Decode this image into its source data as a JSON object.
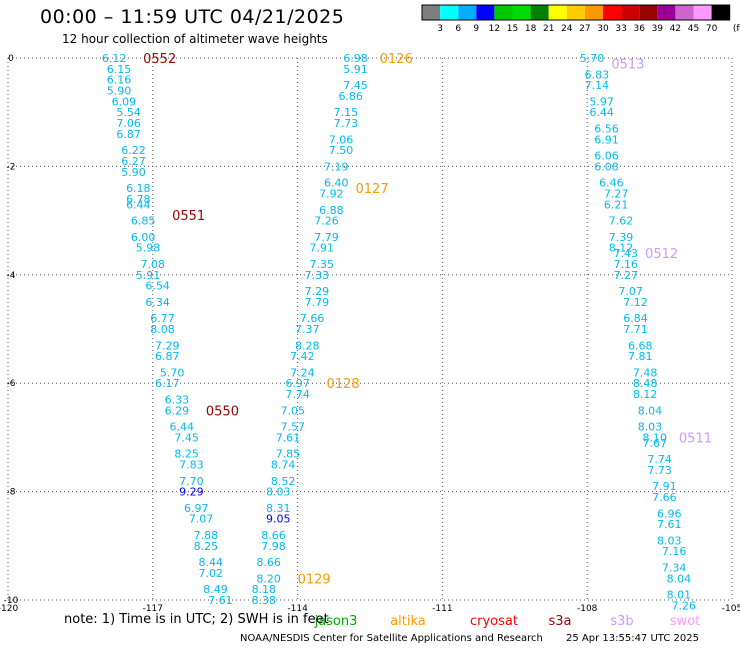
{
  "header": {
    "title": "00:00 – 11:59 UTC 04/21/2025",
    "subtitle": "12 hour collection of altimeter wave heights"
  },
  "colorbar": {
    "ticks": [
      "3",
      "6",
      "9",
      "12",
      "15",
      "18",
      "21",
      "24",
      "27",
      "30",
      "33",
      "36",
      "39",
      "42",
      "45",
      "70"
    ],
    "unit": "(ft)",
    "colors": [
      "#7f7f7f",
      "#00ffff",
      "#00b0ff",
      "#0000ff",
      "#00c800",
      "#00dc00",
      "#008000",
      "#ffff00",
      "#ffcc00",
      "#ff9900",
      "#ff0000",
      "#cc0000",
      "#990000",
      "#990099",
      "#cc66cc",
      "#ff99ff",
      "#000000"
    ]
  },
  "footer": {
    "note": "note: 1) Time is in UTC; 2) SWH is in feet",
    "credit": "NOAA/NESDIS Center for Satellite Applications and Research",
    "timestamp": "25 Apr 13:55:47 UTC 2025"
  },
  "chart_data": {
    "type": "scatter",
    "xlim": [
      -120,
      -105
    ],
    "ylim": [
      -10,
      0
    ],
    "x_ticks": [
      -120,
      -117,
      -114,
      -111,
      -108,
      -105
    ],
    "y_ticks": [
      0,
      -2,
      -4,
      -6,
      -8,
      -10
    ],
    "grid": true,
    "legend_position": "bottom",
    "legend": [
      {
        "name": "jason3",
        "color": "#00aa00"
      },
      {
        "name": "altika",
        "color": "#ff9900"
      },
      {
        "name": "cryosat",
        "color": "#ff0000"
      },
      {
        "name": "s3a",
        "color": "#990000"
      },
      {
        "name": "s3b",
        "color": "#cc99ff"
      },
      {
        "name": "swot",
        "color": "#ff99ff"
      }
    ],
    "time_labels": [
      {
        "text": "0552",
        "lon": -117.2,
        "lat": 0.0,
        "color": "#990000"
      },
      {
        "text": "0551",
        "lon": -116.6,
        "lat": -2.9,
        "color": "#990000"
      },
      {
        "text": "0550",
        "lon": -115.9,
        "lat": -6.5,
        "color": "#990000"
      },
      {
        "text": "0126",
        "lon": -112.3,
        "lat": 0.0,
        "color": "#ff9900"
      },
      {
        "text": "0127",
        "lon": -112.8,
        "lat": -2.4,
        "color": "#ff9900"
      },
      {
        "text": "0128",
        "lon": -113.4,
        "lat": -6.0,
        "color": "#ff9900"
      },
      {
        "text": "0129",
        "lon": -114.0,
        "lat": -9.6,
        "color": "#ff9900"
      },
      {
        "text": "0513",
        "lon": -107.5,
        "lat": -0.1,
        "color": "#cc99ff"
      },
      {
        "text": "0512",
        "lon": -106.8,
        "lat": -3.6,
        "color": "#cc99ff"
      },
      {
        "text": "0511",
        "lon": -106.1,
        "lat": -7.0,
        "color": "#cc99ff"
      }
    ],
    "series": [
      {
        "color": "#00bbee",
        "points": [
          [
            -117.8,
            0.0,
            "6.12"
          ],
          [
            -117.7,
            -0.2,
            "6.15"
          ],
          [
            -117.7,
            -0.4,
            "6.16"
          ],
          [
            -117.7,
            -0.6,
            "5.90"
          ],
          [
            -117.6,
            -0.8,
            "6.09"
          ],
          [
            -117.5,
            -1.0,
            "5.54"
          ],
          [
            -117.5,
            -1.2,
            "7.06"
          ],
          [
            -117.5,
            -1.4,
            "6.87"
          ],
          [
            -117.4,
            -1.7,
            "6.22"
          ],
          [
            -117.4,
            -1.9,
            "6.27"
          ],
          [
            -117.4,
            -2.1,
            "5.90"
          ],
          [
            -117.3,
            -2.4,
            "6.18"
          ],
          [
            -117.3,
            -2.6,
            "6.78"
          ],
          [
            -117.3,
            -2.7,
            "6.44"
          ],
          [
            -117.2,
            -3.0,
            "6.85"
          ],
          [
            -117.2,
            -3.3,
            "6.00"
          ],
          [
            -117.1,
            -3.5,
            "5.98"
          ],
          [
            -117.0,
            -3.8,
            "7.08"
          ],
          [
            -117.1,
            -4.0,
            "5.91"
          ],
          [
            -116.9,
            -4.2,
            "6.54"
          ],
          [
            -116.9,
            -4.5,
            "6.34"
          ],
          [
            -116.8,
            -4.8,
            "6.77"
          ],
          [
            -116.8,
            -5.0,
            "8.08"
          ],
          [
            -116.7,
            -5.3,
            "7.29"
          ],
          [
            -116.7,
            -5.5,
            "6.87"
          ],
          [
            -116.6,
            -5.8,
            "5.70"
          ],
          [
            -116.7,
            -6.0,
            "6.17"
          ],
          [
            -116.5,
            -6.3,
            "6.33"
          ],
          [
            -116.5,
            -6.5,
            "6.29"
          ],
          [
            -116.4,
            -6.8,
            "6.44"
          ],
          [
            -116.3,
            -7.0,
            "7.45"
          ],
          [
            -116.3,
            -7.3,
            "8.25"
          ],
          [
            -116.2,
            -7.5,
            "7.83"
          ],
          [
            -116.2,
            -7.8,
            "7.70"
          ],
          [
            -116.2,
            -8.0,
            "9.29"
          ],
          [
            -116.1,
            -8.3,
            "6.97"
          ],
          [
            -116.0,
            -8.5,
            "7.07"
          ],
          [
            -115.9,
            -8.8,
            "7.88"
          ],
          [
            -115.9,
            -9.0,
            "8.25"
          ],
          [
            -115.8,
            -9.3,
            "8.44"
          ],
          [
            -115.8,
            -9.5,
            "7.02"
          ],
          [
            -115.7,
            -9.8,
            "8.49"
          ],
          [
            -115.6,
            -10.0,
            "7.61"
          ],
          [
            -112.8,
            0.0,
            "6.98"
          ],
          [
            -112.8,
            -0.2,
            "5.91"
          ],
          [
            -112.8,
            -0.5,
            "7.45"
          ],
          [
            -112.9,
            -0.7,
            "6.86"
          ],
          [
            -113.0,
            -1.0,
            "7.15"
          ],
          [
            -113.0,
            -1.2,
            "7.73"
          ],
          [
            -113.1,
            -1.5,
            "7.06"
          ],
          [
            -113.1,
            -1.7,
            "7.50"
          ],
          [
            -113.2,
            -2.0,
            "7.19"
          ],
          [
            -113.2,
            -2.3,
            "6.40"
          ],
          [
            -113.3,
            -2.5,
            "7.92"
          ],
          [
            -113.3,
            -2.8,
            "6.88"
          ],
          [
            -113.4,
            -3.0,
            "7.26"
          ],
          [
            -113.4,
            -3.3,
            "7.79"
          ],
          [
            -113.5,
            -3.5,
            "7.91"
          ],
          [
            -113.5,
            -3.8,
            "7.35"
          ],
          [
            -113.6,
            -4.0,
            "7.33"
          ],
          [
            -113.6,
            -4.3,
            "7.29"
          ],
          [
            -113.6,
            -4.5,
            "7.79"
          ],
          [
            -113.7,
            -4.8,
            "7.66"
          ],
          [
            -113.8,
            -5.0,
            "7.37"
          ],
          [
            -113.8,
            -5.3,
            "8.28"
          ],
          [
            -113.9,
            -5.5,
            "7.42"
          ],
          [
            -113.9,
            -5.8,
            "7.24"
          ],
          [
            -114.0,
            -6.0,
            "6.97"
          ],
          [
            -114.0,
            -6.2,
            "7.74"
          ],
          [
            -114.1,
            -6.5,
            "7.05"
          ],
          [
            -114.1,
            -6.8,
            "7.57"
          ],
          [
            -114.2,
            -7.0,
            "7.61"
          ],
          [
            -114.2,
            -7.3,
            "7.85"
          ],
          [
            -114.3,
            -7.5,
            "8.74"
          ],
          [
            -114.3,
            -7.8,
            "8.52"
          ],
          [
            -114.4,
            -8.0,
            "8.03"
          ],
          [
            -114.4,
            -8.3,
            "8.31"
          ],
          [
            -114.4,
            -8.5,
            "9.05"
          ],
          [
            -114.5,
            -8.8,
            "8.66"
          ],
          [
            -114.5,
            -9.0,
            "7.98"
          ],
          [
            -114.6,
            -9.3,
            "8.66"
          ],
          [
            -114.6,
            -9.6,
            "8.20"
          ],
          [
            -114.7,
            -9.8,
            "8.18"
          ],
          [
            -114.7,
            -10.0,
            "8.38"
          ],
          [
            -107.9,
            0.0,
            "5.70"
          ],
          [
            -107.8,
            -0.3,
            "6.83"
          ],
          [
            -107.8,
            -0.5,
            "7.14"
          ],
          [
            -107.7,
            -0.8,
            "5.97"
          ],
          [
            -107.7,
            -1.0,
            "6.44"
          ],
          [
            -107.6,
            -1.3,
            "6.56"
          ],
          [
            -107.6,
            -1.5,
            "6.91"
          ],
          [
            -107.6,
            -1.8,
            "6.06"
          ],
          [
            -107.6,
            -2.0,
            "6.08"
          ],
          [
            -107.5,
            -2.3,
            "6.46"
          ],
          [
            -107.4,
            -2.5,
            "7.27"
          ],
          [
            -107.4,
            -2.7,
            "6.21"
          ],
          [
            -107.3,
            -3.0,
            "7.62"
          ],
          [
            -107.3,
            -3.3,
            "7.39"
          ],
          [
            -107.3,
            -3.5,
            "8.12"
          ],
          [
            -107.2,
            -3.6,
            "7.43"
          ],
          [
            -107.2,
            -3.8,
            "7.16"
          ],
          [
            -107.2,
            -4.0,
            "7.27"
          ],
          [
            -107.1,
            -4.3,
            "7.07"
          ],
          [
            -107.0,
            -4.5,
            "7.12"
          ],
          [
            -107.0,
            -4.8,
            "6.84"
          ],
          [
            -107.0,
            -5.0,
            "7.71"
          ],
          [
            -106.9,
            -5.3,
            "6.68"
          ],
          [
            -106.9,
            -5.5,
            "7.81"
          ],
          [
            -106.8,
            -5.8,
            "7.48"
          ],
          [
            -106.8,
            -6.0,
            "8.48"
          ],
          [
            -106.8,
            -6.2,
            "8.12"
          ],
          [
            -106.7,
            -6.5,
            "8.04"
          ],
          [
            -106.7,
            -6.8,
            "8.03"
          ],
          [
            -106.6,
            -7.0,
            "8.10"
          ],
          [
            -106.6,
            -7.1,
            "7.67"
          ],
          [
            -106.5,
            -7.4,
            "7.74"
          ],
          [
            -106.5,
            -7.6,
            "7.73"
          ],
          [
            -106.4,
            -7.9,
            "7.91"
          ],
          [
            -106.4,
            -8.1,
            "7.66"
          ],
          [
            -106.3,
            -8.4,
            "6.96"
          ],
          [
            -106.3,
            -8.6,
            "7.61"
          ],
          [
            -106.3,
            -8.9,
            "8.03"
          ],
          [
            -106.2,
            -9.1,
            "7.16"
          ],
          [
            -106.2,
            -9.4,
            "7.34"
          ],
          [
            -106.1,
            -9.6,
            "8.04"
          ],
          [
            -106.1,
            -9.9,
            "8.01"
          ],
          [
            -106.0,
            -10.1,
            "7.26"
          ]
        ]
      }
    ]
  }
}
